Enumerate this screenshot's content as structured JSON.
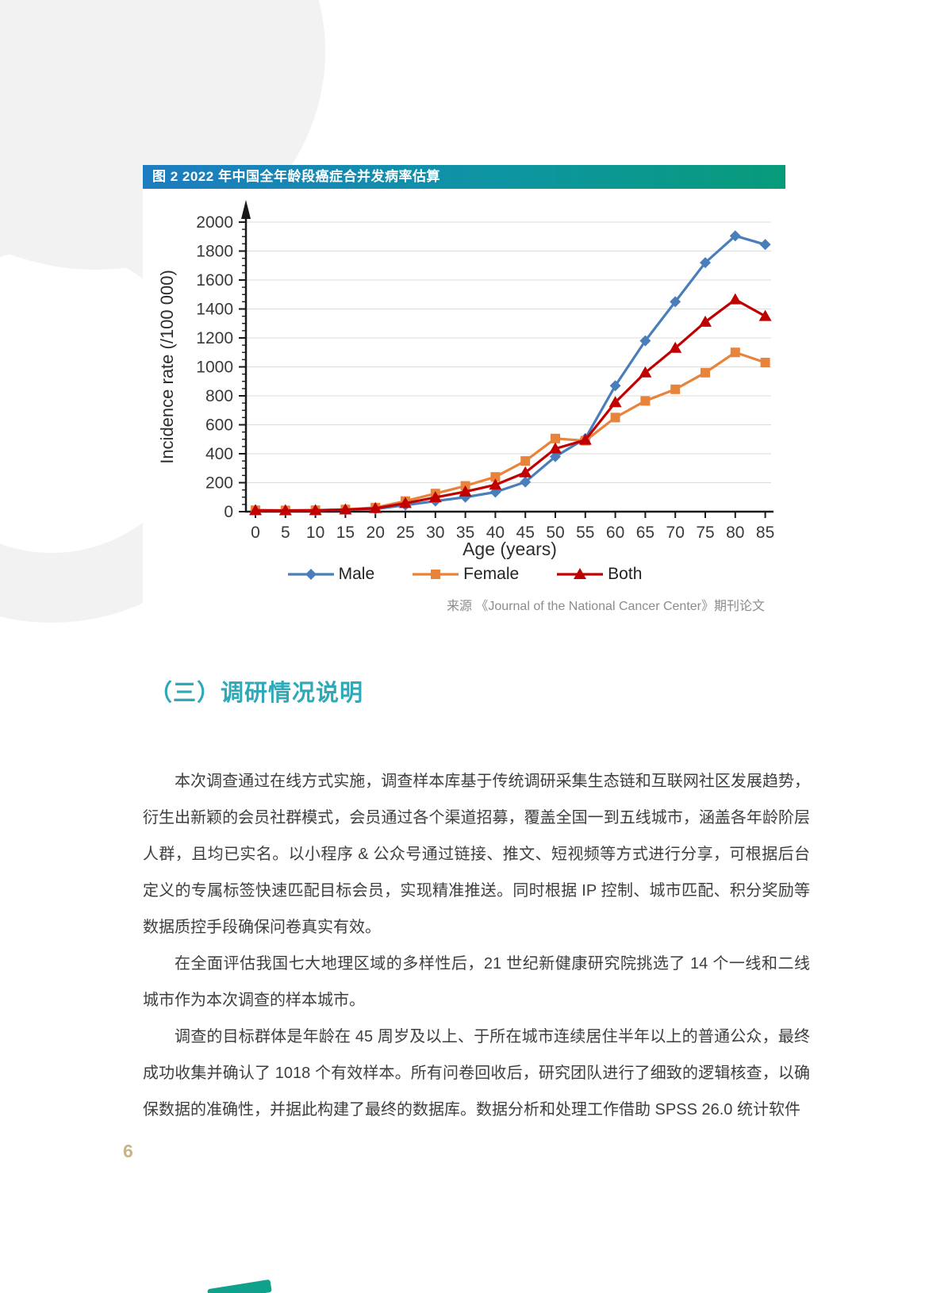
{
  "page": {
    "number": "6"
  },
  "figure": {
    "title": "图 2 2022 年中国全年龄段癌症合并发病率估算",
    "source": "来源 《Journal of the National Cancer Center》期刊论文"
  },
  "chart_data": {
    "type": "line",
    "title": "图 2 2022 年中国全年龄段癌症合并发病率估算",
    "xlabel": "Age (years)",
    "ylabel": "Incidence rate (/100 000)",
    "x": [
      0,
      5,
      10,
      15,
      20,
      25,
      30,
      35,
      40,
      45,
      50,
      55,
      60,
      65,
      70,
      75,
      80,
      85
    ],
    "ylim": [
      0,
      2000
    ],
    "ytick_step": 200,
    "y_minor_step": 50,
    "grid": "horizontal",
    "legend_position": "bottom",
    "series": [
      {
        "name": "Male",
        "color": "#4a7ebb",
        "marker": "diamond",
        "values": [
          8,
          8,
          9,
          13,
          18,
          45,
          73,
          100,
          135,
          205,
          380,
          505,
          870,
          1180,
          1450,
          1720,
          1905,
          1845
        ]
      },
      {
        "name": "Female",
        "color": "#e8833c",
        "marker": "square",
        "values": [
          10,
          9,
          10,
          15,
          28,
          73,
          125,
          178,
          240,
          350,
          505,
          490,
          650,
          765,
          845,
          960,
          1100,
          1030
        ]
      },
      {
        "name": "Both",
        "color": "#c00000",
        "marker": "triangle",
        "values": [
          9,
          8,
          9,
          14,
          23,
          58,
          98,
          138,
          185,
          270,
          435,
          495,
          755,
          960,
          1130,
          1310,
          1465,
          1350
        ]
      }
    ]
  },
  "section_heading": "（三）调研情况说明",
  "paragraphs": [
    "本次调查通过在线方式实施，调查样本库基于传统调研采集生态链和互联网社区发展趋势，衍生出新颖的会员社群模式，会员通过各个渠道招募，覆盖全国一到五线城市，涵盖各年龄阶层人群，且均已实名。以小程序 & 公众号通过链接、推文、短视频等方式进行分享，可根据后台定义的专属标签快速匹配目标会员，实现精准推送。同时根据 IP 控制、城市匹配、积分奖励等数据质控手段确保问卷真实有效。",
    "在全面评估我国七大地理区域的多样性后，21 世纪新健康研究院挑选了 14 个一线和二线城市作为本次调查的样本城市。",
    "调查的目标群体是年龄在 45 周岁及以上、于所在城市连续居住半年以上的普通公众，最终成功收集并确认了 1018 个有效样本。所有问卷回收后，研究团队进行了细致的逻辑核查，以确保数据的准确性，并据此构建了最终的数据库。数据分析和处理工作借助 SPSS 26.0 统计软件"
  ],
  "colors": {
    "titlebar_gradient_start": "#1e7cc0",
    "titlebar_gradient_end": "#089b7a",
    "accent_teal": "#2da9b8",
    "page_number": "#c9b388",
    "gridline": "#dcdcdc"
  }
}
